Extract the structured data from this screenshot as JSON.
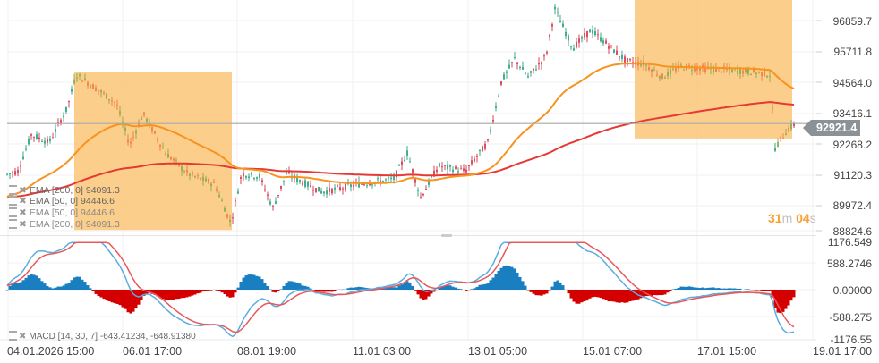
{
  "chart_data": [
    {
      "type": "candlestick",
      "title": "",
      "instrument_price_current": 92921.4,
      "y_axis": {
        "ticks": [
          96859.7,
          95711.8,
          94564.0,
          93416.1,
          92268.2,
          91120.3,
          89972.4,
          88824.6
        ],
        "range": [
          88824.6,
          97500
        ]
      },
      "x_axis": {
        "ticks": [
          "04.01.2026  15:00",
          "06.01  17:00",
          "08.01  19:00",
          "11.01  03:00",
          "13.01  05:00",
          "15.01  07:00",
          "17.01  15:00",
          "19.01  17:00"
        ]
      },
      "grid": true,
      "indicators": [
        {
          "name": "EMA",
          "params": "[200, 0]",
          "value": 94091.3,
          "color": "#e53935"
        },
        {
          "name": "EMA",
          "params": "[50, 0]",
          "value": 94446.6,
          "color": "#f7931e"
        }
      ],
      "highlight_boxes": [
        {
          "from_x": "05.01 ~08:00",
          "to_x": "07.01 ~19:00",
          "price_top": 94900,
          "price_bottom": 88850
        },
        {
          "from_x": "15.01 ~06:00",
          "to_x": "18.01 ~18:00",
          "price_top": 97500,
          "price_bottom": 92350
        }
      ],
      "price_path_approx": [
        [
          0,
          90900
        ],
        [
          20,
          91100
        ],
        [
          35,
          92500
        ],
        [
          55,
          92200
        ],
        [
          75,
          93500
        ],
        [
          85,
          94800
        ],
        [
          110,
          94200
        ],
        [
          130,
          93700
        ],
        [
          145,
          92100
        ],
        [
          160,
          93300
        ],
        [
          185,
          91800
        ],
        [
          210,
          91000
        ],
        [
          240,
          90600
        ],
        [
          258,
          89100
        ],
        [
          270,
          91000
        ],
        [
          290,
          90900
        ],
        [
          305,
          89700
        ],
        [
          320,
          91000
        ],
        [
          360,
          90300
        ],
        [
          400,
          90600
        ],
        [
          440,
          90800
        ],
        [
          455,
          91800
        ],
        [
          470,
          90100
        ],
        [
          490,
          91300
        ],
        [
          520,
          91100
        ],
        [
          545,
          92200
        ],
        [
          560,
          94500
        ],
        [
          575,
          95400
        ],
        [
          590,
          94700
        ],
        [
          610,
          95500
        ],
        [
          620,
          97300
        ],
        [
          640,
          95800
        ],
        [
          660,
          96500
        ],
        [
          680,
          95900
        ],
        [
          700,
          95300
        ],
        [
          720,
          95200
        ],
        [
          740,
          94700
        ],
        [
          760,
          95100
        ],
        [
          800,
          95000
        ],
        [
          840,
          94900
        ],
        [
          860,
          94800
        ],
        [
          866,
          92000
        ],
        [
          880,
          92700
        ],
        [
          889,
          92921.4
        ]
      ],
      "current_price_line": 92921.4,
      "countdown": "31m 04s"
    },
    {
      "type": "line+histogram",
      "indicator": "MACD",
      "params": "[14, 30, 7]",
      "values": {
        "macd": -643.41234,
        "signal": -648.9138
      },
      "y_axis": {
        "ticks": [
          1176.549,
          588.2746,
          0.0,
          -588.275,
          -1176.55
        ]
      },
      "series": [
        {
          "name": "MACD",
          "color": "#5aade0"
        },
        {
          "name": "Signal",
          "color": "#e8585a"
        },
        {
          "name": "Histogram",
          "colors": {
            "positive": "#1a7fc1",
            "negative": "#d40000"
          }
        }
      ]
    }
  ],
  "price_axis": {
    "labels": [
      "96859.7",
      "95711.8",
      "94564.0",
      "93416.1",
      "92268.2",
      "91120.3",
      "89972.4",
      "88824.6"
    ],
    "current_price": "92921.4"
  },
  "macd_axis": {
    "labels": [
      "1176.549",
      "588.2746",
      "0.00000",
      "-588.275",
      "-1176.55"
    ]
  },
  "time_axis": {
    "labels": [
      "04.01.2026  15:00",
      "06.01  17:00",
      "08.01  19:00",
      "11.01  03:00",
      "13.01  05:00",
      "15.01  07:00",
      "17.01  15:00",
      "19.01  17:00"
    ]
  },
  "legends": {
    "ema200_top": "EMA  [200,  0]  94091.3",
    "ema50": "EMA  [50,  0]  94446.6",
    "ema50_dup": "EMA  [50,  0]  94446.6",
    "ema200_bottom": "EMA  [200,  0]  94091.3",
    "macd": "MACD  [14, 30,  7]  -643.41234,  -648.91380"
  },
  "timer": {
    "minutes": "31",
    "minutes_unit": "m",
    "seconds": "04",
    "seconds_unit": "s"
  },
  "colors": {
    "up": "#26a17b",
    "down": "#d6334a",
    "ema50": "#f7931e",
    "ema200": "#e53935",
    "box": "#fbc677",
    "macd_line": "#5aade0",
    "signal_line": "#e8585a",
    "hist_pos": "#1a7fc1",
    "hist_neg": "#d40000"
  }
}
